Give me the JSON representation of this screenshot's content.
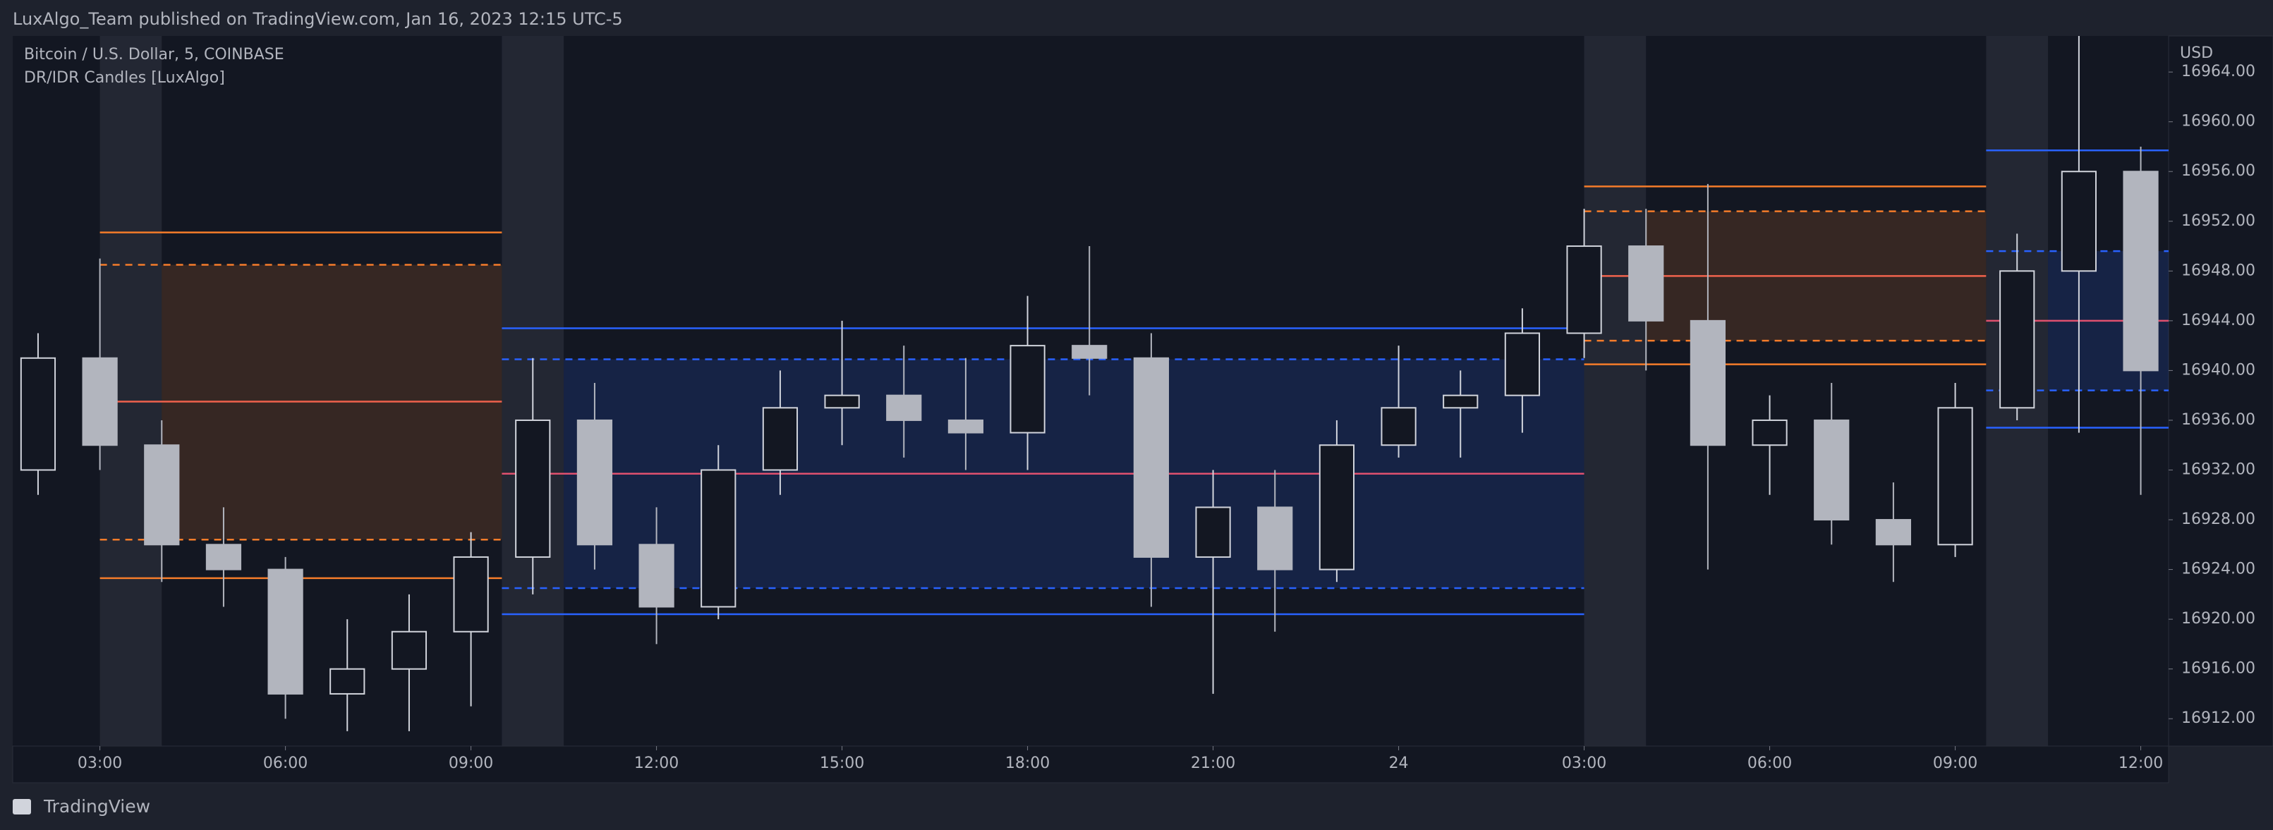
{
  "header": {
    "title": "LuxAlgo_Team published on TradingView.com, Jan 16, 2023 12:15 UTC-5"
  },
  "footer": {
    "brand": "TradingView"
  },
  "chart_data": {
    "type": "candlestick",
    "symbol": "Bitcoin / U.S. Dollar, 5, COINBASE",
    "indicator": "DR/IDR Candles [LuxAlgo]",
    "y_axis_label": "USD",
    "up_color": "#d1d4dc",
    "down_color": "#b2b5be",
    "x": [
      2,
      3,
      4,
      5,
      6,
      7,
      8,
      9,
      10,
      11,
      12,
      13,
      14,
      15,
      16,
      17,
      18,
      19,
      20,
      21,
      22,
      23,
      24,
      25,
      26,
      27,
      28,
      29,
      30,
      31,
      32,
      33,
      34,
      35,
      36
    ],
    "open": [
      16932,
      16941,
      16934,
      16926,
      16924,
      16914,
      16916,
      16919,
      16925,
      16936,
      16926,
      16921,
      16932,
      16937,
      16938,
      16936,
      16935,
      16942,
      16941,
      16925,
      16929,
      16924,
      16934,
      16937,
      16938,
      16943,
      16950,
      16944,
      16934,
      16936,
      16928,
      16926,
      16937,
      16948,
      16956
    ],
    "high": [
      16943,
      16949,
      16936,
      16929,
      16925,
      16920,
      16922,
      16927,
      16941,
      16939,
      16929,
      16934,
      16940,
      16944,
      16942,
      16941,
      16946,
      16950,
      16943,
      16932,
      16932,
      16936,
      16942,
      16940,
      16945,
      16953,
      16953,
      16955,
      16938,
      16939,
      16931,
      16939,
      16951,
      16968,
      16958
    ],
    "low": [
      16930,
      16932,
      16923,
      16921,
      16912,
      16911,
      16911,
      16913,
      16922,
      16924,
      16918,
      16920,
      16930,
      16934,
      16933,
      16932,
      16932,
      16938,
      16921,
      16914,
      16919,
      16923,
      16933,
      16933,
      16935,
      16941,
      16940,
      16924,
      16930,
      16926,
      16923,
      16925,
      16936,
      16935,
      16930
    ],
    "close": [
      16941,
      16934,
      16926,
      16924,
      16914,
      16916,
      16919,
      16925,
      16936,
      16926,
      16921,
      16932,
      16937,
      16938,
      16936,
      16935,
      16942,
      16941,
      16925,
      16929,
      16924,
      16934,
      16937,
      16938,
      16943,
      16950,
      16944,
      16934,
      16936,
      16928,
      16926,
      16937,
      16948,
      16956,
      16940
    ],
    "sessions": [
      {
        "start": 3,
        "end": 9.5,
        "color": "#f57c2a",
        "mid_color": "#f0624d",
        "dr_high": 16951.1,
        "idr_high": 16948.5,
        "mid": 16937.5,
        "idr_low": 16926.4,
        "dr_low": 16923.3
      },
      {
        "start": 9.5,
        "end": 27,
        "color": "#2962ff",
        "mid_color": "#e0506e",
        "dr_high": 16943.4,
        "idr_high": 16940.9,
        "mid": 16931.7,
        "idr_low": 16922.5,
        "dr_low": 16920.4
      },
      {
        "start": 27,
        "end": 33.5,
        "color": "#f57c2a",
        "mid_color": "#f0624d",
        "dr_high": 16954.8,
        "idr_high": 16952.8,
        "mid": 16947.6,
        "idr_low": 16942.4,
        "dr_low": 16940.5
      },
      {
        "start": 33.5,
        "end": 36.45,
        "color": "#2962ff",
        "mid_color": "#e0506e",
        "dr_high": 16957.7,
        "idr_high": 16949.6,
        "mid": 16944.0,
        "idr_low": 16938.4,
        "dr_low": 16935.4
      }
    ],
    "xlim": [
      1.59,
      36.45
    ],
    "xticks": [
      {
        "value": 3,
        "label": "03:00"
      },
      {
        "value": 6,
        "label": "06:00"
      },
      {
        "value": 9,
        "label": "09:00"
      },
      {
        "value": 12,
        "label": "12:00"
      },
      {
        "value": 15,
        "label": "15:00"
      },
      {
        "value": 18,
        "label": "18:00"
      },
      {
        "value": 21,
        "label": "21:00"
      },
      24,
      {
        "value": 27,
        "label": "03:00"
      },
      {
        "value": 30,
        "label": "06:00"
      },
      {
        "value": 33,
        "label": "09:00"
      },
      {
        "value": 36,
        "label": "12:00"
      }
    ],
    "ylim": [
      16909.8,
      16966.9
    ],
    "yticks": [
      {
        "value": 16912,
        "label": "16912.00"
      },
      {
        "value": 16916,
        "label": "16916.00"
      },
      {
        "value": 16920,
        "label": "16920.00"
      },
      {
        "value": 16924,
        "label": "16924.00"
      },
      {
        "value": 16928,
        "label": "16928.00"
      },
      {
        "value": 16932,
        "label": "16932.00"
      },
      {
        "value": 16936,
        "label": "16936.00"
      },
      {
        "value": 16940,
        "label": "16940.00"
      },
      {
        "value": 16944,
        "label": "16944.00"
      },
      {
        "value": 16948,
        "label": "16948.00"
      },
      {
        "value": 16952,
        "label": "16952.00"
      },
      {
        "value": 16956,
        "label": "16956.00"
      },
      {
        "value": 16960,
        "label": "16960.00"
      },
      {
        "value": 16964,
        "label": "16964.00"
      }
    ]
  }
}
